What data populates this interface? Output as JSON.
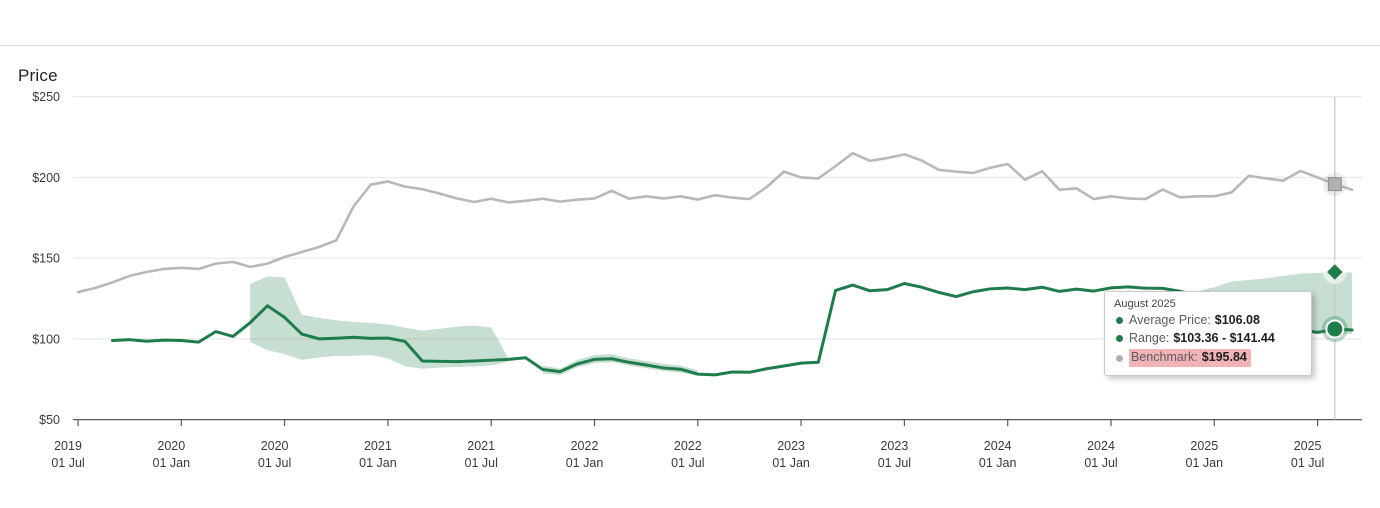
{
  "colors": {
    "average_line": "#1e7d4b",
    "range_fill": "#1e7d4b",
    "range_fill_opacity": 0.25,
    "benchmark_line": "#b8b8b8",
    "benchmark_marker": "#b0b0b0",
    "highlight_pink": "#f2b3b6",
    "gridline": "#e4e4e4",
    "axis_line": "#5a5a5a",
    "axis_text": "#3b3b3b",
    "crosshair": "#c9c9c9"
  },
  "tooltip": {
    "title": "August 2025",
    "rows": [
      {
        "bullet": "#1e7d4b",
        "label": "Average Price:",
        "value": "$106.08",
        "highlight": false
      },
      {
        "bullet": "#1e7d4b",
        "label": "Range:",
        "value": "$103.36 - $141.44",
        "highlight": false
      },
      {
        "bullet": "#b0b0b0",
        "label": "Benchmark:",
        "value": "$195.84",
        "highlight": true
      }
    ]
  },
  "chart_data": {
    "type": "line",
    "title": "Price",
    "x_frequency": "monthly",
    "x_start": "2019-07",
    "x_end": "2025-09",
    "hover_point": {
      "month_index": 73,
      "month_label": "August 2025",
      "average": 106.08,
      "range_low": 103.36,
      "range_high": 141.44,
      "benchmark": 195.84
    },
    "y_ticks": [
      {
        "label": "$250",
        "value": 250
      },
      {
        "label": "$200",
        "value": 200
      },
      {
        "label": "$150",
        "value": 150
      },
      {
        "label": "$100",
        "value": 100
      },
      {
        "label": "$50",
        "value": 50
      }
    ],
    "y_range": [
      50,
      250
    ],
    "x_tick_labels": [
      {
        "year": "2019",
        "day": "01 Jul"
      },
      {
        "year": "2020",
        "day": "01 Jan"
      },
      {
        "year": "2020",
        "day": "01 Jul"
      },
      {
        "year": "2021",
        "day": "01 Jan"
      },
      {
        "year": "2021",
        "day": "01 Jul"
      },
      {
        "year": "2022",
        "day": "01 Jan"
      },
      {
        "year": "2022",
        "day": "01 Jul"
      },
      {
        "year": "2023",
        "day": "01 Jan"
      },
      {
        "year": "2023",
        "day": "01 Jul"
      },
      {
        "year": "2024",
        "day": "01 Jan"
      },
      {
        "year": "2024",
        "day": "01 Jul"
      },
      {
        "year": "2025",
        "day": "01 Jan"
      },
      {
        "year": "2025",
        "day": "01 Jul"
      }
    ],
    "series": [
      {
        "name": "Benchmark",
        "values": [
          129,
          131.5,
          135,
          139,
          141.5,
          143.3,
          144,
          143.3,
          146.6,
          147.7,
          144.6,
          146.6,
          150.7,
          153.8,
          156.9,
          161,
          182,
          195.5,
          197.5,
          194.3,
          192.7,
          190,
          187,
          184.8,
          186.8,
          184.5,
          185.5,
          186.8,
          185,
          186.2,
          187,
          191.7,
          186.8,
          188.3,
          187,
          188.3,
          186.3,
          189,
          187.5,
          186.6,
          194,
          203.6,
          200,
          199.4,
          207,
          215,
          210.3,
          212,
          214.3,
          210.5,
          204.7,
          203.6,
          202.8,
          206,
          208.3,
          198.6,
          203.8,
          192.4,
          193.2,
          186.6,
          188.3,
          187,
          186.6,
          192.5,
          187.7,
          188.3,
          188.3,
          190.7,
          201,
          199.4,
          198,
          204,
          200,
          195.84,
          192.4
        ]
      },
      {
        "name": "Average Price",
        "values": [
          null,
          null,
          99,
          99.5,
          98.5,
          99.2,
          99,
          98,
          104.5,
          101.5,
          110,
          120.5,
          113.3,
          103,
          100,
          100.4,
          101,
          100.3,
          100.5,
          98.4,
          86.3,
          86.1,
          85.9,
          86.3,
          86.8,
          87.3,
          88.3,
          81,
          79.7,
          84.5,
          87.3,
          87.7,
          85.5,
          83.8,
          82,
          81.2,
          78.2,
          77.7,
          79.5,
          79.3,
          81.5,
          83.2,
          85,
          85.5,
          130,
          133.3,
          129.8,
          130.5,
          134.3,
          132,
          128.8,
          126.2,
          129.2,
          131,
          131.5,
          130.5,
          132,
          129.4,
          130.8,
          129.6,
          131.6,
          132.2,
          131.4,
          131.3,
          129.5,
          127,
          123.5,
          119.5,
          115.5,
          111.5,
          108,
          105.5,
          104,
          106.08,
          105.5
        ]
      },
      {
        "name": "Range",
        "low": [
          null,
          null,
          null,
          null,
          null,
          null,
          null,
          null,
          null,
          null,
          98,
          93,
          90.5,
          87,
          88.5,
          89.5,
          89.5,
          90,
          88,
          83,
          81.5,
          82.2,
          82.6,
          83,
          83.5,
          86,
          null,
          78.5,
          77.5,
          82.5,
          85,
          85.5,
          83.5,
          81.8,
          80,
          79.2,
          77,
          null,
          null,
          null,
          null,
          null,
          null,
          null,
          null,
          null,
          null,
          null,
          null,
          null,
          null,
          null,
          null,
          null,
          null,
          null,
          null,
          null,
          null,
          null,
          null,
          null,
          null,
          null,
          null,
          124.5,
          120,
          115.5,
          111.5,
          108.5,
          105.5,
          104,
          103.4,
          103.36,
          103
        ],
        "high": [
          null,
          null,
          null,
          null,
          null,
          null,
          null,
          null,
          null,
          null,
          134,
          138.6,
          138,
          115,
          113,
          111.5,
          110.5,
          109.8,
          109,
          107,
          105,
          106.3,
          107.7,
          108.3,
          107.1,
          88,
          null,
          83.5,
          81.5,
          87,
          90,
          90.5,
          88,
          86.3,
          84.5,
          83.5,
          80.5,
          null,
          null,
          null,
          null,
          null,
          null,
          null,
          null,
          null,
          null,
          null,
          null,
          null,
          null,
          null,
          null,
          null,
          null,
          null,
          null,
          null,
          null,
          null,
          null,
          null,
          null,
          null,
          null,
          129.5,
          132,
          135.5,
          136.5,
          137.5,
          139,
          140.3,
          140.8,
          141.44,
          141
        ]
      }
    ]
  }
}
